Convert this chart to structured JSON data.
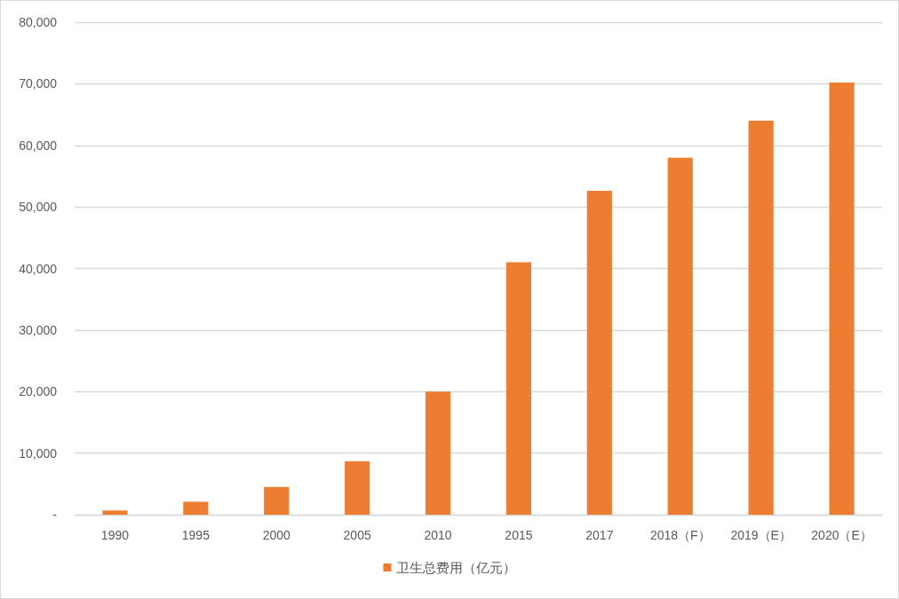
{
  "chart_data": {
    "type": "bar",
    "categories": [
      "1990",
      "1995",
      "2000",
      "2005",
      "2010",
      "2015",
      "2017",
      "2018（F）",
      "2019（E）",
      "2020（E）"
    ],
    "series": [
      {
        "name": "卫生总费用（亿元）",
        "color": "#ed7d31",
        "values": [
          700,
          2100,
          4500,
          8700,
          20000,
          41000,
          52600,
          58000,
          64000,
          70200
        ]
      }
    ],
    "ylim": [
      0,
      80000
    ],
    "yticks": [
      {
        "value": 0,
        "label": "-"
      },
      {
        "value": 10000,
        "label": "10,000"
      },
      {
        "value": 20000,
        "label": "20,000"
      },
      {
        "value": 30000,
        "label": "30,000"
      },
      {
        "value": 40000,
        "label": "40,000"
      },
      {
        "value": 50000,
        "label": "50,000"
      },
      {
        "value": 60000,
        "label": "60,000"
      },
      {
        "value": 70000,
        "label": "70,000"
      },
      {
        "value": 80000,
        "label": "80,000"
      }
    ],
    "grid": "y",
    "legend": "bottom"
  }
}
